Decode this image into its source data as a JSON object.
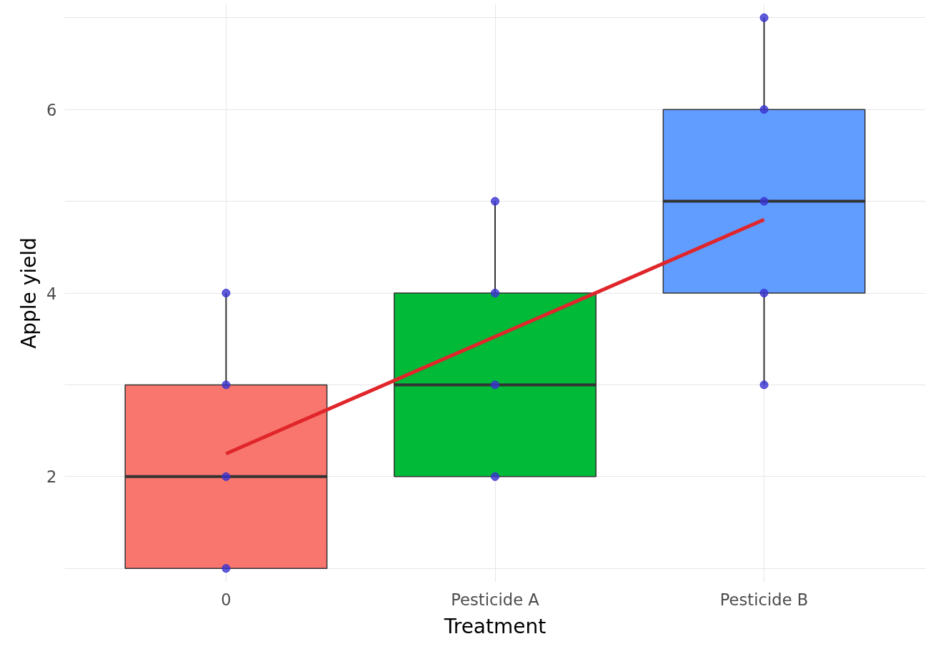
{
  "chart_data": {
    "type": "box",
    "xlabel": "Treatment",
    "ylabel": "Apple yield",
    "categories": [
      "0",
      "Pesticide A",
      "Pesticide B"
    ],
    "boxes": [
      {
        "low": 1,
        "q1": 1,
        "median": 2,
        "q3": 3,
        "high": 4
      },
      {
        "low": 2,
        "q1": 2,
        "median": 3,
        "q3": 4,
        "high": 5
      },
      {
        "low": 3,
        "q1": 4,
        "median": 5,
        "q3": 6,
        "high": 7
      }
    ],
    "colors": [
      "#f8766d",
      "#00ba38",
      "#619cff"
    ],
    "series": [
      {
        "type": "scatter",
        "marker": "circle",
        "color": "#3a33d1",
        "x": [
          "0",
          "0",
          "0",
          "0",
          "Pesticide A",
          "Pesticide A",
          "Pesticide A",
          "Pesticide A",
          "Pesticide B",
          "Pesticide B",
          "Pesticide B",
          "Pesticide B",
          "Pesticide B"
        ],
        "values": [
          1,
          2,
          3,
          4,
          2,
          3,
          4,
          5,
          3,
          4,
          5,
          6,
          7
        ]
      },
      {
        "type": "line",
        "color": "#e0262b",
        "x": [
          "0",
          "Pesticide B"
        ],
        "values": [
          2.25,
          4.8
        ]
      }
    ],
    "ylim": [
      0.85,
      7.15
    ],
    "yticks": [
      {
        "value": 1,
        "label": null
      },
      2,
      {
        "value": 3,
        "label": null
      },
      4,
      {
        "value": 5,
        "label": null
      },
      6,
      {
        "value": 7,
        "label": null
      }
    ],
    "grid": true
  }
}
